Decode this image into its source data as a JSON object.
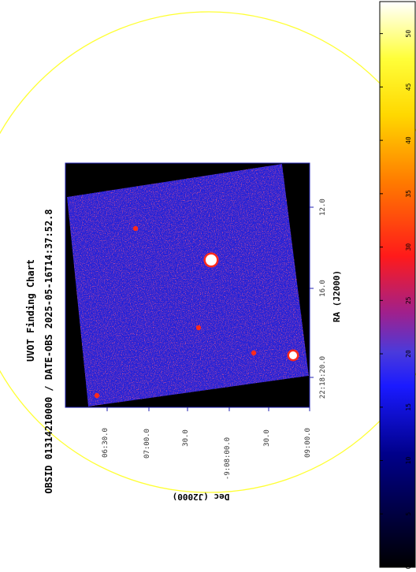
{
  "chart": {
    "title": "UVOT Finding Chart",
    "subtitle": "OBSID 01314210000 / DATE-OBS 2025-05-16T14:37:52.8",
    "ra_label": "RA (J2000)",
    "dec_label": "Dec (J2000)",
    "ra_ticks": [
      "12.0",
      "16.0",
      "22:18:20.0"
    ],
    "dec_ticks": [
      "06:30.0",
      "07:00.0",
      "30.0",
      "-9:08:00.0",
      "30.0",
      "09:00.0"
    ],
    "colorbar_ticks": [
      "0",
      "5",
      "10",
      "15",
      "20",
      "25",
      "30",
      "35",
      "40",
      "45",
      "50"
    ],
    "colorbar_range": [
      0,
      53
    ],
    "colors": {
      "circle": "#ffff33",
      "frame": "#2020b0",
      "sky": "#2222d8"
    },
    "sources": [
      {
        "kind": "bright-star"
      },
      {
        "kind": "bright-star"
      },
      {
        "kind": "faint-source"
      },
      {
        "kind": "faint-source"
      },
      {
        "kind": "faint-source"
      },
      {
        "kind": "faint-source"
      }
    ]
  }
}
